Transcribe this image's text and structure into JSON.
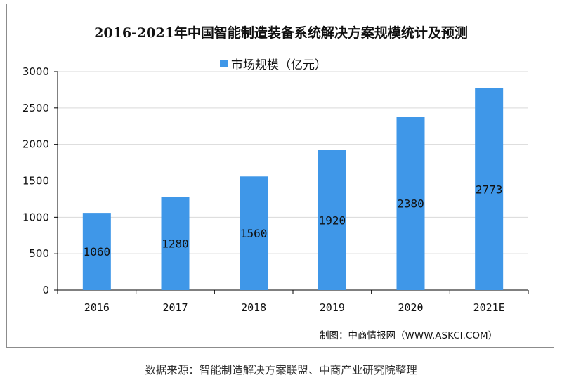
{
  "title": "2016-2021年中国智能制造装备系统解决方案规模统计及预测",
  "legend": {
    "label": "市场规模（亿元）"
  },
  "credit": "制图：中商情报网（WWW.ASKCI.COM）",
  "source": "数据来源：智能制造解决方案联盟、中商产业研究院整理",
  "colors": {
    "bar": "#3f97e8",
    "axis": "#000000",
    "grid": "#d9d9d9"
  },
  "chart_data": {
    "type": "bar",
    "categories": [
      "2016",
      "2017",
      "2018",
      "2019",
      "2020",
      "2021E"
    ],
    "series": [
      {
        "name": "市场规模（亿元）",
        "values": [
          1060,
          1280,
          1560,
          1920,
          2380,
          2773
        ]
      }
    ],
    "title": "2016-2021年中国智能制造装备系统解决方案规模统计及预测",
    "xlabel": "",
    "ylabel": "",
    "ylim": [
      0,
      3000
    ],
    "yticks": [
      0,
      500,
      1000,
      1500,
      2000,
      2500,
      3000
    ],
    "grid": true,
    "legend_position": "top-center",
    "data_labels": true
  }
}
